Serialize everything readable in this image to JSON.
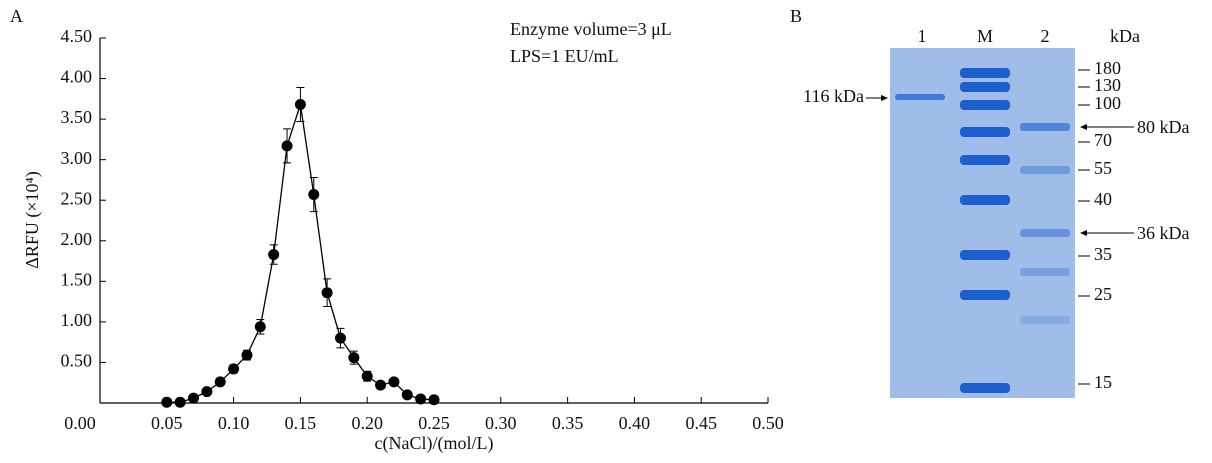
{
  "chart_data": {
    "type": "line",
    "panel_label": "A",
    "x_label": "c(NaCl)/(mol/L)",
    "y_label": "ΔRFU (×10⁴)",
    "annotations": [
      "Enzyme volume=3 μL",
      "LPS=1 EU/mL"
    ],
    "x": [
      0.05,
      0.06,
      0.07,
      0.08,
      0.09,
      0.1,
      0.11,
      0.12,
      0.13,
      0.14,
      0.15,
      0.16,
      0.17,
      0.18,
      0.19,
      0.2,
      0.21,
      0.22,
      0.23,
      0.24,
      0.25
    ],
    "values": [
      0.01,
      0.01,
      0.06,
      0.14,
      0.26,
      0.42,
      0.59,
      0.94,
      1.83,
      3.17,
      3.68,
      2.57,
      1.36,
      0.8,
      0.56,
      0.33,
      0.22,
      0.26,
      0.1,
      0.05,
      0.04
    ],
    "errors": [
      0.02,
      0.02,
      0.03,
      0.03,
      0.04,
      0.05,
      0.06,
      0.09,
      0.12,
      0.21,
      0.21,
      0.21,
      0.17,
      0.12,
      0.08,
      0.06,
      0.04,
      0.04,
      0.03,
      0.02,
      0.02
    ],
    "color": "#000000",
    "xlim": [
      0,
      0.5
    ],
    "xticks": [
      {
        "value": 0,
        "label": "0.00"
      },
      {
        "value": 0.05,
        "label": "0.05"
      },
      {
        "value": 0.1,
        "label": "0.10"
      },
      {
        "value": 0.15,
        "label": "0.15"
      },
      {
        "value": 0.2,
        "label": "0.20"
      },
      {
        "value": 0.25,
        "label": "0.25"
      },
      {
        "value": 0.3,
        "label": "0.30"
      },
      {
        "value": 0.35,
        "label": "0.35"
      },
      {
        "value": 0.4,
        "label": "0.40"
      },
      {
        "value": 0.45,
        "label": "0.45"
      },
      {
        "value": 0.5,
        "label": "0.50"
      }
    ],
    "ylim": [
      0,
      4.5
    ],
    "yticks": [
      {
        "value": 0.5,
        "label": "0.50"
      },
      {
        "value": 1,
        "label": "1.00"
      },
      {
        "value": 1.5,
        "label": "1.50"
      },
      {
        "value": 2,
        "label": "2.00"
      },
      {
        "value": 2.5,
        "label": "2.50"
      },
      {
        "value": 3,
        "label": "3.00"
      },
      {
        "value": 3.5,
        "label": "3.50"
      },
      {
        "value": 4,
        "label": "4.00"
      },
      {
        "value": 4.5,
        "label": "4.50"
      }
    ],
    "grid": false
  },
  "gel": {
    "panel_label": "B",
    "lanes": [
      "1",
      "M",
      "2"
    ],
    "unit": "kDa",
    "markers": [
      "180",
      "130",
      "100",
      "70",
      "55",
      "40",
      "35",
      "25",
      "15"
    ],
    "annotations": [
      "116 kDa",
      "80 kDa",
      "36 kDa"
    ]
  }
}
